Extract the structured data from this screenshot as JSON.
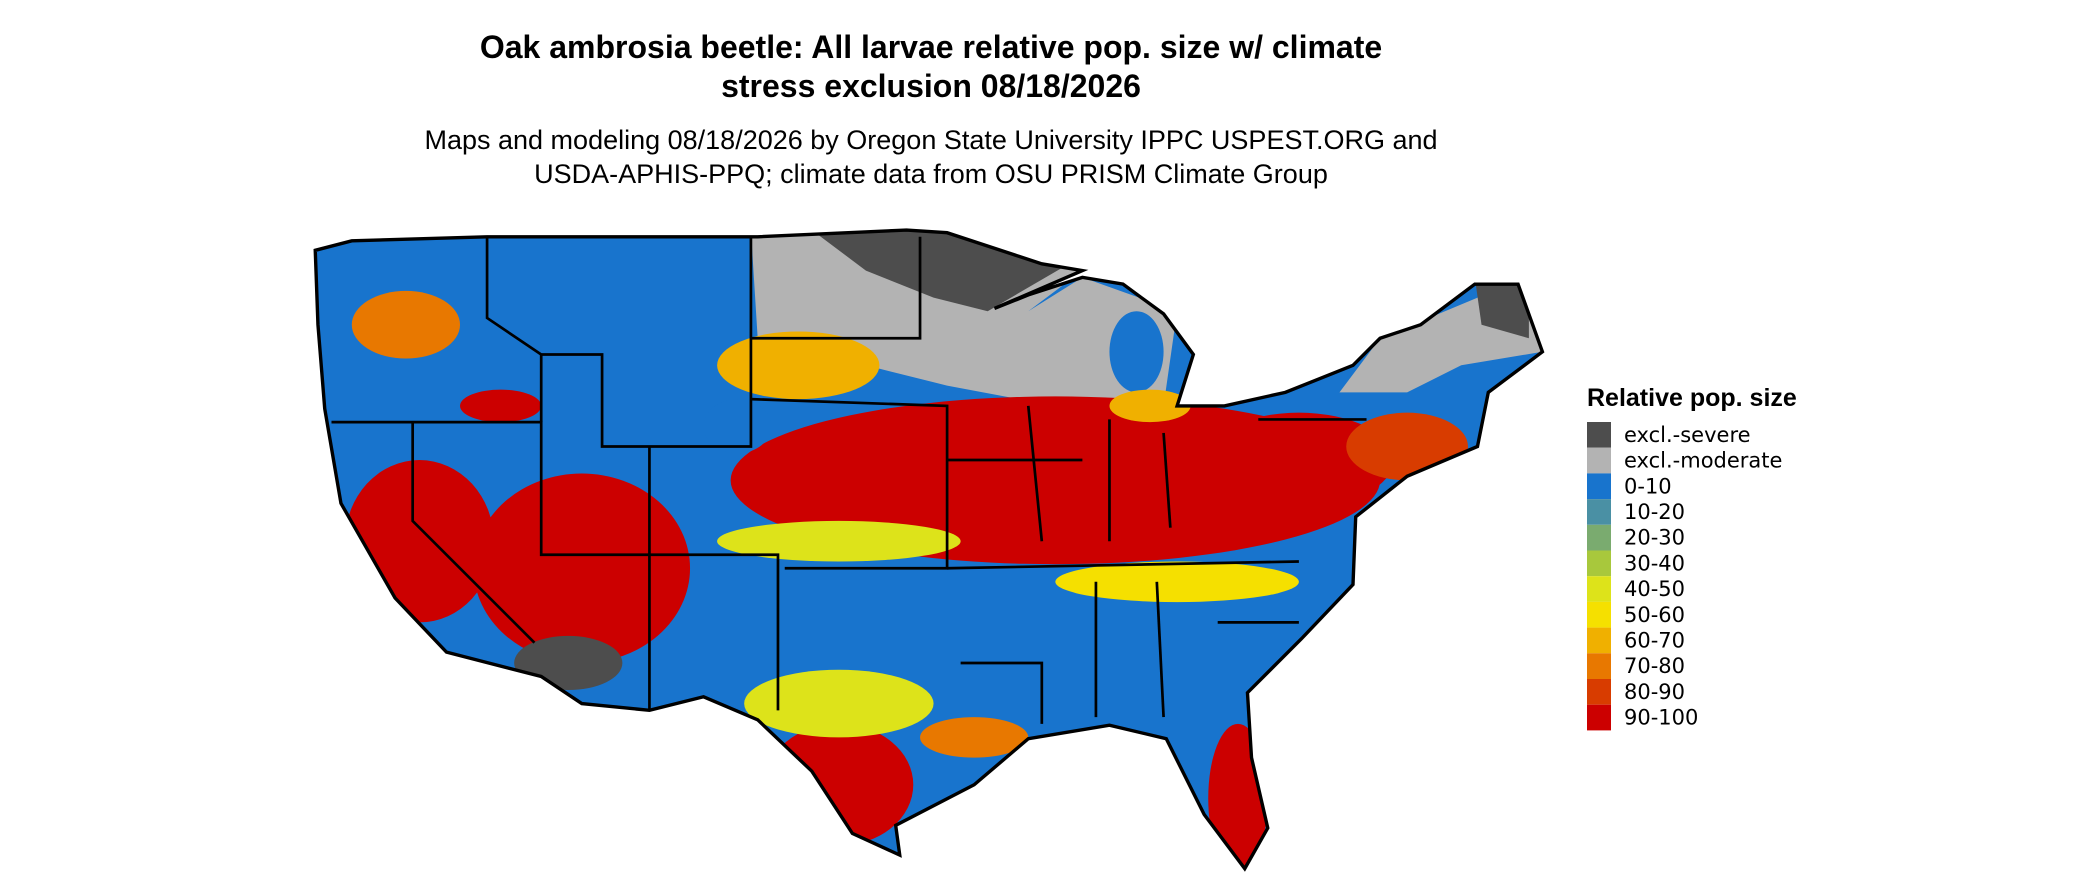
{
  "title": [
    "Oak ambrosia beetle: All larvae relative pop. size w/ climate",
    "stress exclusion 08/18/2026"
  ],
  "subtitle": [
    "Maps and modeling 08/18/2026 by Oregon State University IPPC USPEST.ORG and",
    "USDA-APHIS-PPQ; climate data from OSU PRISM Climate Group"
  ],
  "legend": {
    "title": "Relative pop. size",
    "items": [
      {
        "label": "excl.-severe",
        "color": "#4d4d4d"
      },
      {
        "label": "excl.-moderate",
        "color": "#b3b3b3"
      },
      {
        "label": "0-10",
        "color": "#1874cd"
      },
      {
        "label": "10-20",
        "color": "#4a90a4"
      },
      {
        "label": "20-30",
        "color": "#7aab6f"
      },
      {
        "label": "30-40",
        "color": "#a8c83c"
      },
      {
        "label": "40-50",
        "color": "#dde31a"
      },
      {
        "label": "50-60",
        "color": "#f5e000"
      },
      {
        "label": "60-70",
        "color": "#f0b000"
      },
      {
        "label": "70-80",
        "color": "#e87800"
      },
      {
        "label": "80-90",
        "color": "#d83c00"
      },
      {
        "label": "90-100",
        "color": "#cc0000"
      }
    ]
  }
}
